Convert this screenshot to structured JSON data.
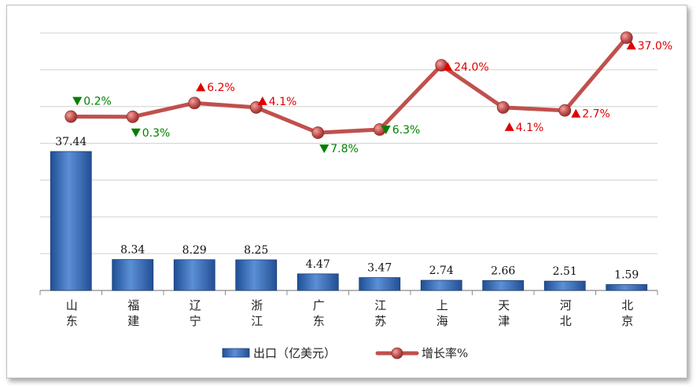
{
  "chart_data": {
    "type": "bar+line",
    "categories": [
      "山东",
      "福建",
      "辽宁",
      "浙江",
      "广东",
      "江苏",
      "上海",
      "天津",
      "河北",
      "北京"
    ],
    "series": [
      {
        "name": "出口（亿美元）",
        "type": "bar",
        "values": [
          37.44,
          8.34,
          8.29,
          8.25,
          4.47,
          3.47,
          2.74,
          2.66,
          2.51,
          1.59
        ],
        "color": "#2e68b4"
      },
      {
        "name": "增长率%",
        "type": "line",
        "values": [
          -0.2,
          -0.3,
          6.2,
          4.1,
          -7.8,
          -6.3,
          24.0,
          4.1,
          2.7,
          37.0
        ],
        "labels": [
          "0.2%",
          "0.3%",
          "6.2%",
          "4.1%",
          "7.8%",
          "6.3%",
          "24.0%",
          "4.1%",
          "2.7%",
          "37.0%"
        ],
        "color": "#c0504d"
      }
    ],
    "colors": {
      "up": "#e00000",
      "down": "#008000"
    },
    "grid": true,
    "legend": "bottom"
  }
}
